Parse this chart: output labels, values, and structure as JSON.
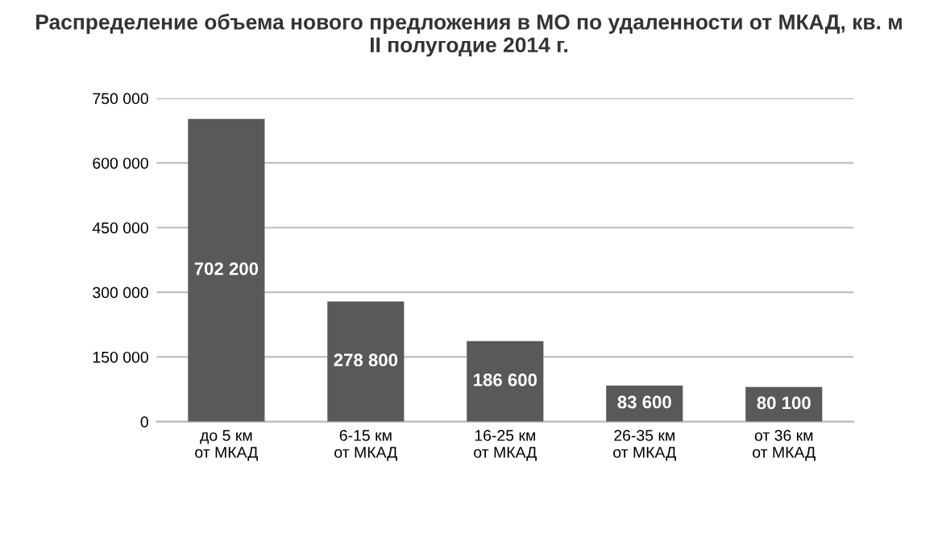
{
  "chart_data": {
    "type": "bar",
    "title": "Распределение объема нового предложения в МО по удаленности от МКАД, кв. м\nII полугодие 2014 г.",
    "categories": [
      "до 5 км\nот МКАД",
      "6-15 км\nот МКАД",
      "16-25 км\nот МКАД",
      "26-35 км\nот МКАД",
      "от 36 км\nот МКАД"
    ],
    "values": [
      702200,
      278800,
      186600,
      83600,
      80100
    ],
    "value_labels": [
      "702 200",
      "278 800",
      "186 600",
      "83 600",
      "80 100"
    ],
    "color": "#595959",
    "ylim": [
      0,
      750000
    ],
    "yticks": [
      {
        "value": 0,
        "label": "0"
      },
      {
        "value": 150000,
        "label": "150 000"
      },
      {
        "value": 300000,
        "label": "300 000"
      },
      {
        "value": 450000,
        "label": "450 000"
      },
      {
        "value": 600000,
        "label": "600 000"
      },
      {
        "value": 750000,
        "label": "750 000"
      }
    ],
    "grid": "y"
  }
}
